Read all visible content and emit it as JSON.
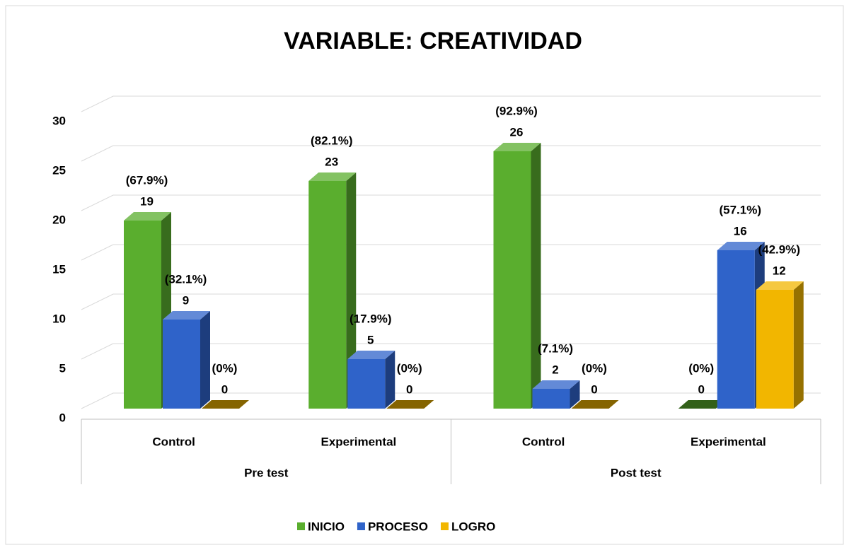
{
  "chart_data": {
    "type": "bar3d",
    "title": "VARIABLE: CREATIVIDAD",
    "categories": [
      "Control",
      "Experimental",
      "Control",
      "Experimental"
    ],
    "groups": [
      "Pre test",
      "Post test"
    ],
    "series": [
      {
        "name": "INICIO",
        "color": "#5aae2e",
        "values": [
          19,
          23,
          26,
          0
        ],
        "percent_labels": [
          "(67.9%)",
          "(82.1%)",
          "(92.9%)",
          "(0%)"
        ]
      },
      {
        "name": "PROCESO",
        "color": "#2f63c9",
        "values": [
          9,
          5,
          2,
          16
        ],
        "percent_labels": [
          "(32.1%)",
          "(17.9%)",
          "(7.1%)",
          "(57.1%)"
        ]
      },
      {
        "name": "LOGRO",
        "color": "#f2b600",
        "values": [
          0,
          0,
          0,
          12
        ],
        "percent_labels": [
          "(0%)",
          "(0%)",
          "(0%)",
          "(42.9%)"
        ]
      }
    ],
    "ylim": [
      0,
      30
    ],
    "yticks": [
      0,
      5,
      10,
      15,
      20,
      25,
      30
    ],
    "grid": true
  }
}
